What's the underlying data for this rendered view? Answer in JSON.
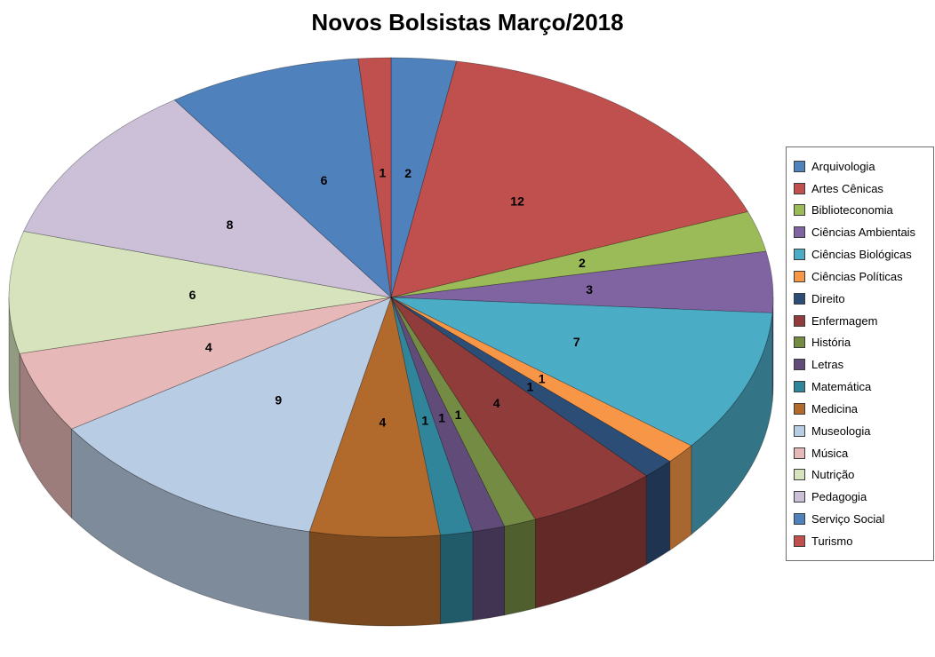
{
  "title": "Novos Bolsistas Março/2018",
  "chart_data": {
    "type": "pie",
    "subtype": "3d-pie",
    "title": "Novos Bolsistas Março/2018",
    "legend_position": "right",
    "start_angle_deg": -90,
    "direction": "clockwise",
    "data_labels": "value",
    "total": 73,
    "categories": [
      "Arquivologia",
      "Artes Cênicas",
      "Biblioteconomia",
      "Ciências Ambientais",
      "Ciências Biológicas",
      "Ciências Políticas",
      "Direito",
      "Enfermagem",
      "História",
      "Letras",
      "Matemática",
      "Medicina",
      "Museologia",
      "Música",
      "Nutrição",
      "Pedagogia",
      "Serviço Social",
      "Turismo"
    ],
    "values": [
      2,
      12,
      2,
      3,
      7,
      1,
      1,
      4,
      1,
      1,
      1,
      4,
      9,
      4,
      6,
      8,
      6,
      1
    ],
    "colors": [
      "#4F81BD",
      "#C0504D",
      "#9BBB59",
      "#8064A2",
      "#4BACC6",
      "#F79646",
      "#2C4D75",
      "#903C3A",
      "#748B43",
      "#604B79",
      "#31859B",
      "#B26A2C",
      "#B8CCE4",
      "#E6B8B7",
      "#D6E3BC",
      "#CCC0D9",
      "#4F81BD",
      "#C0504D"
    ],
    "label_color": "#000000",
    "background_color": "#FFFFFF"
  }
}
